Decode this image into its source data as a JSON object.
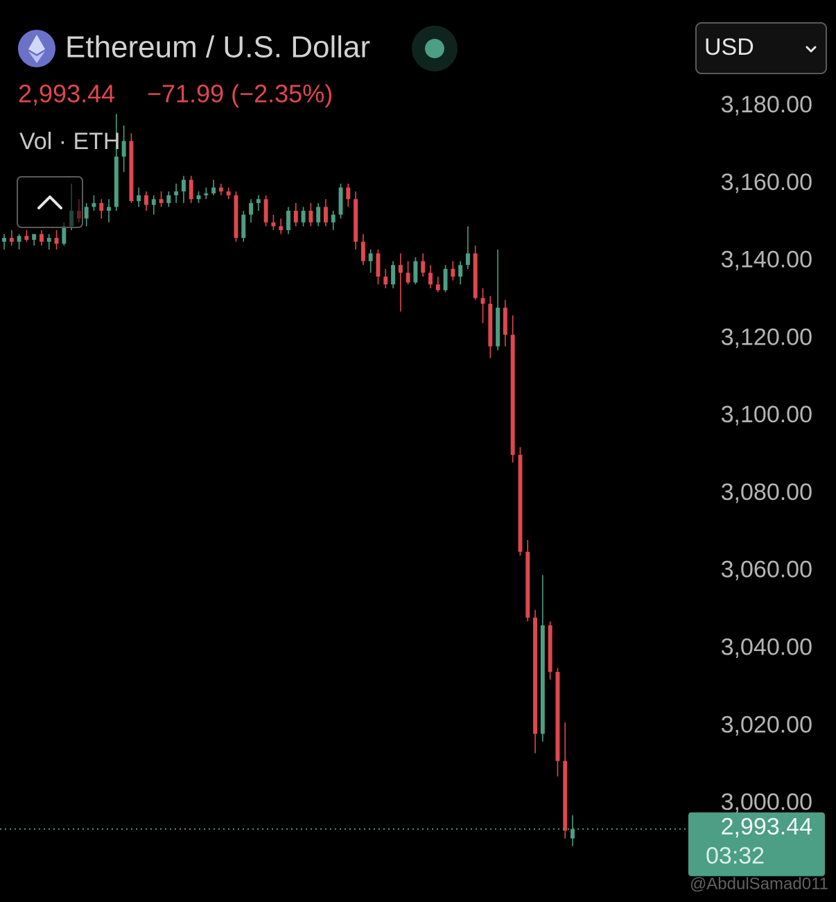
{
  "chart_data": {
    "type": "candlestick",
    "title": "Ethereum / U.S. Dollar",
    "price": "2,993.44",
    "change": "−71.99 (−2.35%)",
    "volume_label": "Vol · ETH",
    "currency": "USD",
    "countdown": "03:32",
    "watermark": "@AbdulSamad011",
    "up_color": "#4c9e84",
    "down_color": "#e0474f",
    "last_price": {
      "value": 2993.44,
      "label": "2,993.44"
    },
    "ylim": [
      2974.6,
      3207.4
    ],
    "yticks": [
      {
        "value": 3000,
        "label": "3,000.00"
      },
      {
        "value": 3020,
        "label": "3,020.00"
      },
      {
        "value": 3040,
        "label": "3,040.00"
      },
      {
        "value": 3060,
        "label": "3,060.00"
      },
      {
        "value": 3080,
        "label": "3,080.00"
      },
      {
        "value": 3100,
        "label": "3,100.00"
      },
      {
        "value": 3120,
        "label": "3,120.00"
      },
      {
        "value": 3140,
        "label": "3,140.00"
      },
      {
        "value": 3160,
        "label": "3,160.00"
      },
      {
        "value": 3180,
        "label": "3,180.00"
      }
    ],
    "open": [
      3145,
      3146,
      3145,
      3146.5,
      3145.5,
      3147,
      3145,
      3146,
      3144.5,
      3149,
      3153,
      3151,
      3154,
      3155,
      3153,
      3154,
      3167,
      3171,
      3155.5,
      3157,
      3154.5,
      3156,
      3155,
      3157,
      3158,
      3161,
      3156,
      3157,
      3157.5,
      3159,
      3158,
      3157,
      3146,
      3152,
      3155,
      3156,
      3150,
      3149,
      3148,
      3153,
      3150,
      3153,
      3150,
      3154,
      3150,
      3152,
      3159,
      3156,
      3145,
      3140,
      3142,
      3136,
      3134,
      3139,
      3137,
      3134.5,
      3140,
      3137,
      3134,
      3132.5,
      3138,
      3136,
      3139,
      3142,
      3130.5,
      3129,
      3118,
      3128,
      3121,
      3090,
      3065,
      3048,
      3018,
      3046,
      3034,
      3011,
      2991
    ],
    "high": [
      3147,
      3148,
      3147,
      3148,
      3147,
      3148,
      3147,
      3148,
      3150,
      3160,
      3156,
      3155,
      3157,
      3156,
      3156,
      3178,
      3175,
      3173,
      3159,
      3158,
      3157,
      3158,
      3158,
      3160,
      3162,
      3162,
      3158,
      3159,
      3161,
      3160,
      3159,
      3158,
      3153,
      3156,
      3157,
      3157,
      3152,
      3151,
      3154,
      3155,
      3154,
      3155,
      3155,
      3156,
      3153,
      3160,
      3160,
      3158,
      3147,
      3143,
      3143,
      3138,
      3140,
      3142,
      3140,
      3141,
      3142,
      3139,
      3136,
      3139,
      3140,
      3140,
      3149,
      3144,
      3133,
      3131,
      3143,
      3130,
      3126,
      3092,
      3068,
      3050,
      3059,
      3047,
      3035,
      3021,
      2997
    ],
    "low": [
      3143,
      3144,
      3143,
      3145,
      3144,
      3144,
      3143,
      3143,
      3144,
      3148,
      3150,
      3149,
      3153,
      3151,
      3150,
      3153,
      3163,
      3155,
      3154,
      3153,
      3152,
      3154,
      3154,
      3155,
      3155,
      3155,
      3155,
      3156,
      3157,
      3157,
      3156,
      3145,
      3145,
      3150,
      3153,
      3149,
      3148,
      3147,
      3147,
      3149,
      3149,
      3149,
      3149,
      3149,
      3148,
      3151,
      3154,
      3143,
      3139,
      3137,
      3134,
      3133,
      3133,
      3127,
      3134,
      3134,
      3136,
      3133,
      3132,
      3132,
      3135,
      3134,
      3138,
      3130,
      3124,
      3115,
      3117,
      3118,
      3088,
      3064,
      3047,
      3013,
      3016,
      3032,
      3007,
      2991,
      2989
    ],
    "close": [
      3146,
      3145,
      3146.5,
      3145.5,
      3147,
      3145,
      3146,
      3144.5,
      3149,
      3153,
      3151,
      3154,
      3155,
      3153,
      3154,
      3167,
      3171,
      3155.5,
      3157,
      3154.5,
      3156,
      3155,
      3157,
      3158,
      3161,
      3156,
      3157,
      3157.5,
      3159,
      3158,
      3157,
      3146,
      3152,
      3155,
      3156,
      3150,
      3149,
      3148,
      3153,
      3150,
      3153,
      3150,
      3154,
      3150,
      3152,
      3159,
      3156,
      3145,
      3140,
      3142,
      3136,
      3134,
      3139,
      3137,
      3134.5,
      3140,
      3137,
      3134,
      3132.5,
      3138,
      3136,
      3139,
      3142,
      3130.5,
      3129,
      3118,
      3128,
      3121,
      3090,
      3065,
      3048,
      3018,
      3046,
      3034,
      3011,
      2993,
      2993.44
    ]
  }
}
